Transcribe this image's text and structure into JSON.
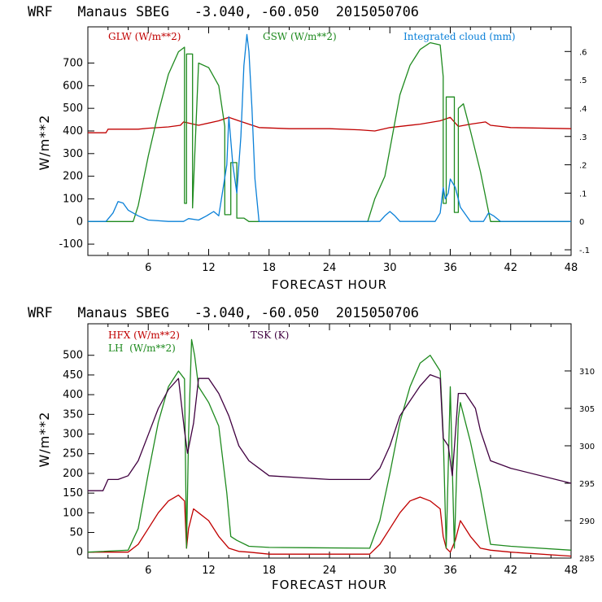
{
  "colors": {
    "red": "#c00000",
    "green": "#1e8a1e",
    "blue": "#0a80d8",
    "purple": "#400040",
    "axis": "#000000"
  },
  "chart_data": [
    {
      "type": "line",
      "title": "WRF   Manaus SBEG   -3.040, -60.050  2015050706",
      "xlabel": "FORECAST HOUR",
      "ylabel": "W/m**2",
      "xlim": [
        0,
        48
      ],
      "ylim": [
        -150,
        860
      ],
      "xticks": [
        6,
        12,
        18,
        24,
        30,
        36,
        42,
        48
      ],
      "yticks": [
        -100,
        0,
        100,
        200,
        300,
        400,
        500,
        600,
        700
      ],
      "y2lim": [
        -0.12,
        0.687
      ],
      "y2ticks": [
        -0.1,
        0,
        0.1,
        0.2,
        0.3,
        0.4,
        0.5,
        0.6
      ],
      "y2ticklabels": [
        "-.1",
        "0",
        ".1",
        ".2",
        ".3",
        ".4",
        ".5",
        ".6"
      ],
      "series": [
        {
          "name": "GLW (W/m**2)",
          "color": "#c00000",
          "axis": "left",
          "x": [
            0,
            1.8,
            2,
            5,
            6,
            8,
            9.2,
            9.5,
            11,
            13,
            14,
            15,
            17,
            20,
            24,
            27,
            28.5,
            30,
            33,
            35,
            36,
            36.8,
            38,
            39.5,
            40,
            42,
            48
          ],
          "y": [
            392,
            392,
            408,
            408,
            412,
            418,
            425,
            440,
            425,
            445,
            460,
            445,
            415,
            410,
            410,
            405,
            400,
            415,
            430,
            445,
            460,
            420,
            430,
            440,
            425,
            415,
            410
          ]
        },
        {
          "name": "GSW (W/m**2)",
          "color": "#1e8a1e",
          "axis": "left",
          "x": [
            0,
            4.5,
            5,
            6,
            7,
            8,
            9,
            9.6,
            9.6,
            9.8,
            9.8,
            10.4,
            10.4,
            11,
            12,
            13,
            13.6,
            13.6,
            14.2,
            14.2,
            14.8,
            14.8,
            15.5,
            16,
            27.8,
            28.5,
            29.5,
            30,
            31,
            32,
            33,
            34,
            35,
            35.3,
            35.3,
            35.6,
            35.6,
            36.4,
            36.4,
            36.8,
            36.8,
            37.3,
            38,
            39,
            40,
            48
          ],
          "y": [
            0,
            0,
            70,
            290,
            480,
            650,
            750,
            770,
            80,
            80,
            740,
            740,
            60,
            700,
            680,
            600,
            420,
            30,
            30,
            260,
            260,
            15,
            15,
            0,
            0,
            100,
            200,
            320,
            560,
            690,
            760,
            790,
            780,
            640,
            80,
            80,
            550,
            550,
            40,
            40,
            500,
            520,
            400,
            220,
            0,
            0
          ]
        },
        {
          "name": "Integrated cloud (mm)",
          "color": "#0a80d8",
          "axis": "right",
          "x": [
            0,
            1.8,
            2.5,
            3,
            3.5,
            4,
            4.5,
            5,
            6,
            8,
            9.5,
            10,
            11,
            11.8,
            12.5,
            13,
            13.8,
            14,
            14.4,
            14.8,
            15.2,
            15.5,
            15.8,
            16,
            16.3,
            16.6,
            17,
            29,
            29.5,
            30,
            30.5,
            31,
            34.5,
            35,
            35.3,
            35.5,
            35.8,
            36,
            36.5,
            37,
            38,
            39.3,
            39.8,
            40.3,
            41,
            48
          ],
          "y": [
            0,
            0,
            0.03,
            0.07,
            0.065,
            0.04,
            0.03,
            0.02,
            0.005,
            0,
            0,
            0.01,
            0.005,
            0.02,
            0.035,
            0.02,
            0.2,
            0.37,
            0.2,
            0.1,
            0.3,
            0.55,
            0.66,
            0.6,
            0.4,
            0.15,
            0,
            0,
            0.02,
            0.035,
            0.02,
            0,
            0,
            0.03,
            0.12,
            0.08,
            0.1,
            0.15,
            0.12,
            0.05,
            0,
            0,
            0.03,
            0.02,
            0,
            0
          ]
        }
      ],
      "legend": [
        {
          "text": "GLW (W/m**2)",
          "color": "#c00000",
          "position": "top-left"
        },
        {
          "text": "GSW (W/m**2)",
          "color": "#1e8a1e",
          "position": "top-center"
        },
        {
          "text": "Integrated cloud (mm)",
          "color": "#0a80d8",
          "position": "top-right"
        }
      ]
    },
    {
      "type": "line",
      "title": "WRF   Manaus SBEG   -3.040, -60.050  2015050706",
      "xlabel": "FORECAST HOUR",
      "ylabel": "W/m**2",
      "xlim": [
        0,
        48
      ],
      "ylim": [
        -15,
        580
      ],
      "xticks": [
        6,
        12,
        18,
        24,
        30,
        36,
        42,
        48
      ],
      "yticks": [
        0,
        50,
        100,
        150,
        200,
        250,
        300,
        350,
        400,
        450,
        500
      ],
      "y2lim": [
        285,
        316.3
      ],
      "y2ticks": [
        285,
        290,
        295,
        300,
        305,
        310
      ],
      "series": [
        {
          "name": "HFX (W/m**2)",
          "color": "#c00000",
          "axis": "left",
          "x": [
            0,
            4,
            5,
            6,
            7,
            8,
            9,
            9.6,
            9.8,
            10,
            10.5,
            11,
            12,
            13,
            14,
            15,
            16,
            18,
            24,
            28,
            29,
            30,
            31,
            32,
            33,
            34,
            35,
            35.3,
            35.6,
            36,
            36.5,
            37,
            38,
            39,
            40,
            42,
            48
          ],
          "y": [
            0,
            0,
            20,
            60,
            100,
            130,
            145,
            130,
            10,
            60,
            110,
            100,
            80,
            40,
            10,
            2,
            0,
            -5,
            -5,
            -5,
            20,
            60,
            100,
            130,
            140,
            130,
            110,
            40,
            10,
            0,
            30,
            80,
            40,
            10,
            5,
            0,
            -10
          ]
        },
        {
          "name": "LH (W/m**2)",
          "color": "#1e8a1e",
          "axis": "left",
          "x": [
            0,
            4,
            5,
            6,
            7,
            8,
            9,
            9.6,
            9.8,
            10,
            10.3,
            10.6,
            11,
            12,
            13,
            13.8,
            14.2,
            14.8,
            16,
            18,
            28,
            29,
            30,
            31,
            32,
            33,
            34,
            35,
            35.3,
            35.6,
            36,
            36.4,
            36.8,
            37,
            38,
            39,
            40,
            42,
            48
          ],
          "y": [
            0,
            5,
            60,
            200,
            330,
            420,
            460,
            440,
            10,
            300,
            540,
            500,
            420,
            380,
            320,
            150,
            40,
            30,
            15,
            12,
            10,
            80,
            200,
            330,
            420,
            480,
            500,
            460,
            300,
            10,
            420,
            10,
            340,
            380,
            280,
            160,
            20,
            15,
            5
          ]
        },
        {
          "name": "TSK (K)",
          "color": "#400040",
          "axis": "right",
          "x": [
            0,
            1.5,
            2,
            3,
            4,
            5,
            6,
            7,
            8,
            9,
            9.6,
            9.9,
            10.5,
            11,
            12,
            13,
            14,
            15,
            16,
            18,
            24,
            28,
            29,
            30,
            31,
            32,
            33,
            34,
            35,
            35.3,
            35.8,
            36.2,
            36.8,
            37.5,
            38.5,
            39,
            39.5,
            40,
            42,
            48
          ],
          "y": [
            294,
            294,
            295.5,
            295.5,
            296,
            298,
            301.5,
            305,
            307.5,
            309,
            302,
            299,
            303,
            309,
            309,
            307,
            304,
            300,
            298,
            296,
            295.5,
            295.5,
            297,
            300,
            304,
            306,
            308,
            309.5,
            309,
            301,
            300,
            296,
            307,
            307,
            305,
            302,
            300,
            298,
            297,
            295
          ]
        }
      ],
      "legend": [
        {
          "text": "HFX (W/m**2)",
          "color": "#c00000",
          "position": "top-left"
        },
        {
          "text": "LH  (W/m**2)",
          "color": "#1e8a1e",
          "position": "top-left"
        },
        {
          "text": "TSK (K)",
          "color": "#400040",
          "position": "top-center"
        }
      ]
    }
  ]
}
